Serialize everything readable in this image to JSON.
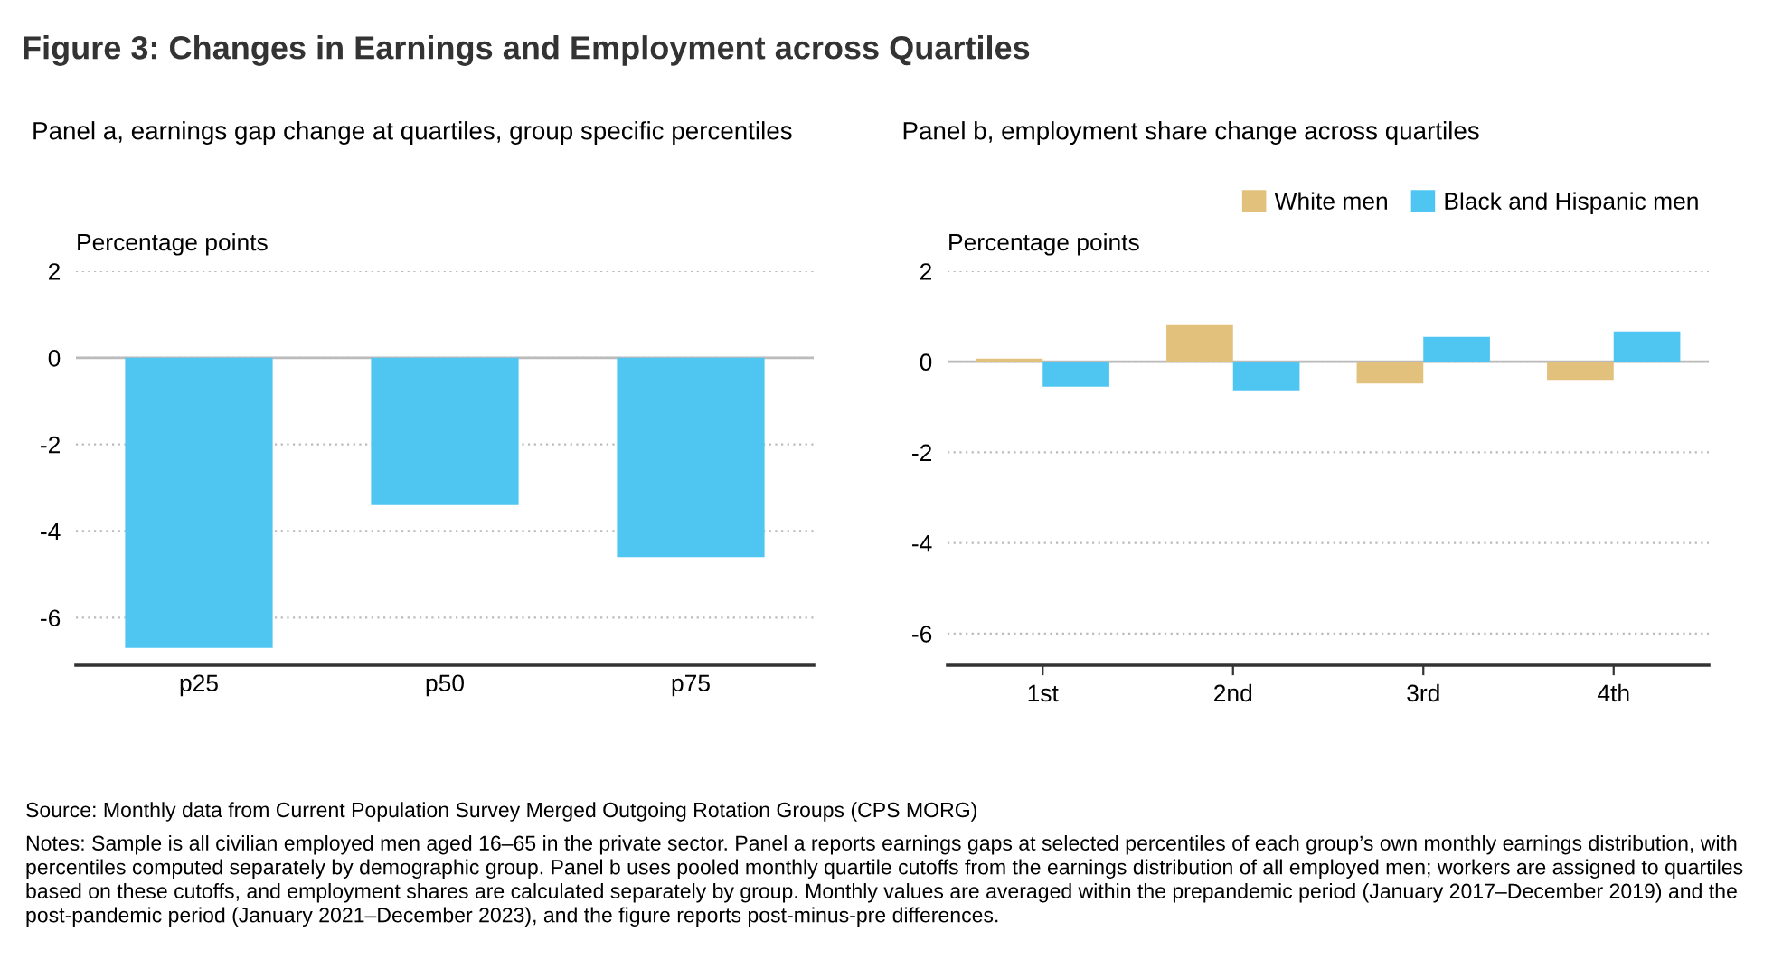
{
  "chart_data": [
    {
      "type": "bar",
      "title": "Figure 3: Changes in Earnings and Employment across Quartiles",
      "subtitle": "Panel a, earnings gap change at quartiles, group specific percentiles",
      "ylabel": "Percentage points",
      "categories": [
        "p25",
        "p50",
        "p75"
      ],
      "series": [
        {
          "color": "#4fc6f2",
          "values": [
            -6.7,
            -3.4,
            -4.6
          ]
        }
      ],
      "ylim": [
        -7.1,
        2
      ],
      "yticks": [
        -6,
        -4,
        -2,
        0,
        2
      ],
      "grid": "y",
      "legend": false,
      "annotations": [
        "Source: Monthly data from Current Population Survey Merged Outgoing Rotation Groups (CPS MORG)",
        "Notes: Sample is all civilian employed men aged 16–65 in the private sector. Panel a reports earnings gaps at selected percentiles of each group’s own monthly earnings distribution, with percentiles computed separately by demographic group. Panel b uses pooled monthly quartile cutoffs from the earnings distribution of all employed men; workers are assigned to quartiles based on these cutoffs, and employment shares are calculated separately by group. Monthly values are averaged within the prepandemic period (January 2017–December 2019) and the post-pandemic period (January 2021–December 2023), and the figure reports post-minus-pre differences."
      ]
    },
    {
      "type": "bar",
      "subtitle": "Panel b, employment share change across quartiles",
      "ylabel": "Percentage points",
      "categories": [
        "1st",
        "2nd",
        "3rd",
        "4th"
      ],
      "series": [
        {
          "name": "White men",
          "color": "#e2c17c",
          "values": [
            0.07,
            0.83,
            -0.48,
            -0.4
          ]
        },
        {
          "name": "Black and Hispanic men",
          "color": "#4fc6f2",
          "values": [
            -0.55,
            -0.65,
            0.55,
            0.67
          ]
        }
      ],
      "ylim": [
        -6.7,
        2
      ],
      "yticks": [
        -6,
        -4,
        -2,
        0,
        2
      ],
      "grid": "y",
      "legend": "top right"
    }
  ]
}
